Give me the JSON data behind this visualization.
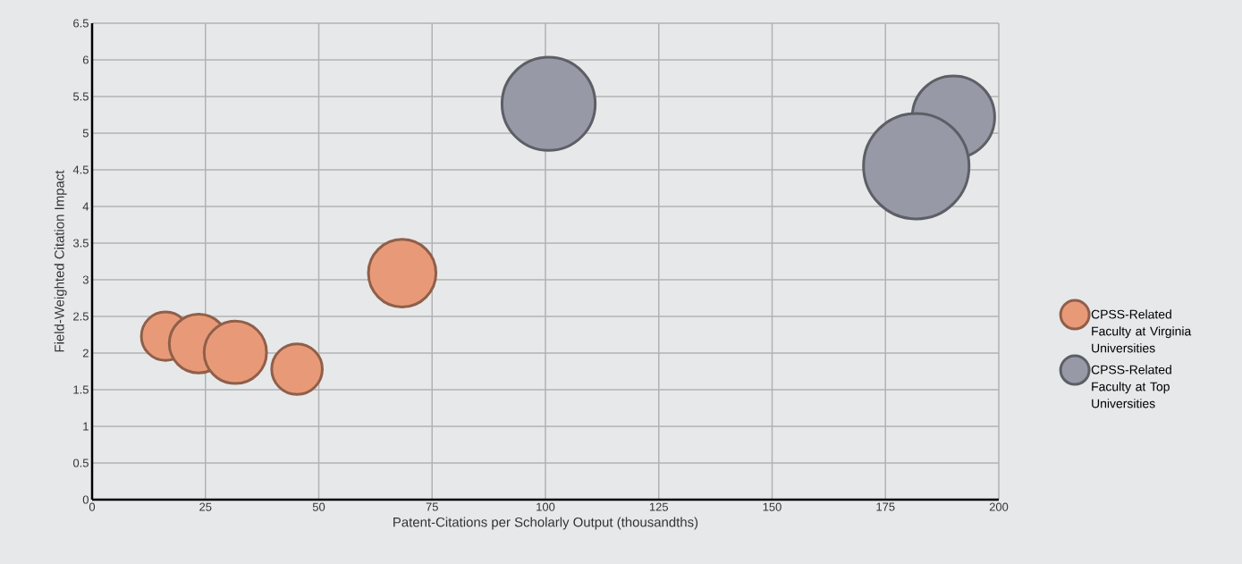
{
  "chart_data": {
    "type": "bubble",
    "xlabel": "Patent-Citations per Scholarly Output (thousandths)",
    "ylabel": "Field-Weighted Citation Impact",
    "xlim": [
      0,
      200
    ],
    "xticks": [
      0,
      25,
      50,
      75,
      100,
      125,
      150,
      175,
      200
    ],
    "ylim": [
      0,
      6.5
    ],
    "yticks": [
      0,
      0.5,
      1,
      1.5,
      2,
      2.5,
      3,
      3.5,
      4,
      4.5,
      5,
      5.5,
      6,
      6.5
    ],
    "grid": true,
    "legend": "right",
    "marker": "circle",
    "series": [
      {
        "name": "CPSS-Related Faculty at Virginia Universities",
        "color": "#e89a78",
        "x": [
          16.2,
          23.5,
          31.6,
          45.2,
          68.4
        ],
        "values": [
          2.23,
          2.13,
          2.01,
          1.78,
          3.09
        ],
        "sizes": [
          0.21,
          0.31,
          0.35,
          0.23,
          0.41
        ]
      },
      {
        "name": "CPSS-Related Faculty at Top Universities",
        "color": "#979aa6",
        "x": [
          100.7,
          190,
          181.8
        ],
        "values": [
          5.4,
          5.22,
          4.55
        ],
        "sizes": [
          0.78,
          0.61,
          1
        ]
      }
    ]
  }
}
